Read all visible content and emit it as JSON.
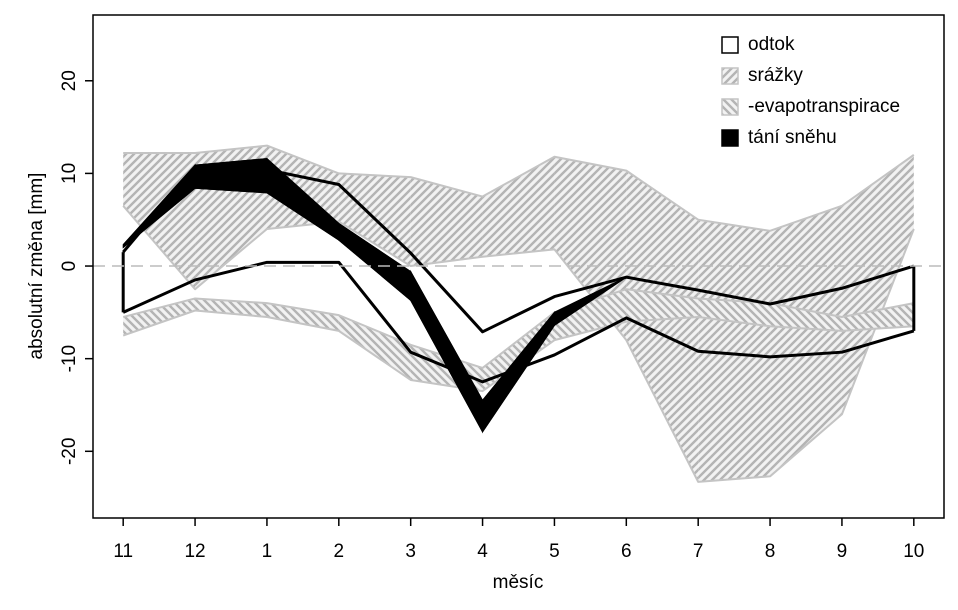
{
  "chart_data": {
    "type": "band",
    "x_label": "měsíc",
    "y_label": "absolutní změna [mm]",
    "categories": [
      "11",
      "12",
      "1",
      "2",
      "3",
      "4",
      "5",
      "6",
      "7",
      "8",
      "9",
      "10"
    ],
    "ylim": [
      -27.2,
      27.1
    ],
    "yticks": [
      -20,
      -10,
      0,
      10,
      20
    ],
    "hline": 0,
    "legend": "top-right",
    "series": [
      {
        "name": "srážky",
        "color": "#c4c4c4",
        "fill": "hatch-right",
        "high": [
          12.2,
          12.2,
          13,
          10,
          9.6,
          7.5,
          11.8,
          10.3,
          5,
          3.8,
          6.5,
          12
        ],
        "low": [
          6.5,
          -2.5,
          4,
          4.8,
          0,
          1,
          1.8,
          -8,
          -23.3,
          -22.7,
          -16,
          4
        ]
      },
      {
        "name": "-evapotranspirace",
        "color": "#c4c4c4",
        "fill": "hatch-left",
        "high": [
          -5.5,
          -3.5,
          -4,
          -5.3,
          -8.5,
          -11,
          -5,
          -2.5,
          -3.5,
          -4,
          -5.5,
          -4
        ],
        "low": [
          -7.5,
          -4.8,
          -5.5,
          -7,
          -12.3,
          -13.5,
          -8,
          -6,
          -5.5,
          -6.5,
          -7,
          -6.5
        ]
      },
      {
        "name": "odtok",
        "color": "#000000",
        "fill": "none",
        "high": [
          1.5,
          10.7,
          10.4,
          8.8,
          1.4,
          -7.1,
          -3.3,
          -1.2,
          -2.6,
          -4.1,
          -2.4,
          0
        ],
        "low": [
          -5,
          -1.5,
          0.4,
          0.4,
          -9.3,
          -12.5,
          -9.6,
          -5.6,
          -9.2,
          -9.8,
          -9.3,
          -7
        ]
      },
      {
        "name": "tání sněhu",
        "color": "#000000",
        "fill": "solid",
        "high": [
          2.3,
          10.9,
          11.6,
          4.6,
          -0.6,
          -14.5,
          -5,
          -1.2,
          null,
          null,
          null,
          null
        ],
        "low": [
          2,
          8.4,
          7.9,
          2.8,
          -3.7,
          -17.9,
          -6.4,
          -1.2,
          null,
          null,
          null,
          null
        ]
      }
    ]
  }
}
